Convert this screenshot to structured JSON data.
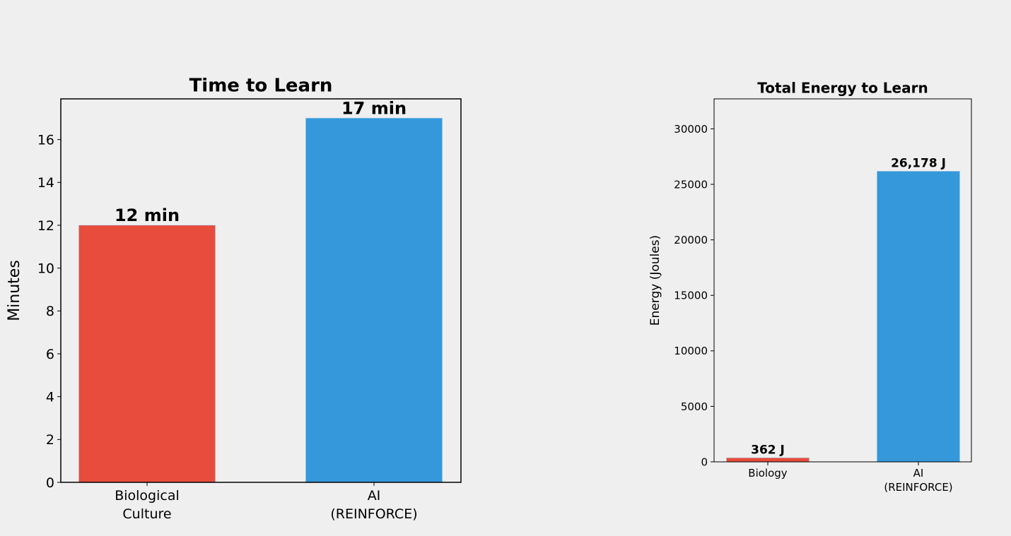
{
  "chart_data": [
    {
      "type": "bar",
      "title": "Time to Learn",
      "ylabel": "Minutes",
      "categories": [
        "Biological\nCulture",
        "AI\n(REINFORCE)"
      ],
      "values": [
        12,
        17
      ],
      "value_labels": [
        "12 min",
        "17 min"
      ],
      "colors": [
        "#e74c3c",
        "#3498db"
      ],
      "ylim": [
        0,
        17.9
      ],
      "yticks": [
        0,
        2,
        4,
        6,
        8,
        10,
        12,
        14,
        16
      ]
    },
    {
      "type": "bar",
      "title": "Total Energy to Learn",
      "ylabel": "Energy (Joules)",
      "categories": [
        "Biology",
        "AI\n(REINFORCE)"
      ],
      "values": [
        362,
        26178
      ],
      "value_labels": [
        "362 J",
        "26,178 J"
      ],
      "colors": [
        "#e74c3c",
        "#3498db"
      ],
      "ylim": [
        0,
        32700
      ],
      "yticks": [
        0,
        5000,
        10000,
        15000,
        20000,
        25000,
        30000
      ]
    }
  ]
}
